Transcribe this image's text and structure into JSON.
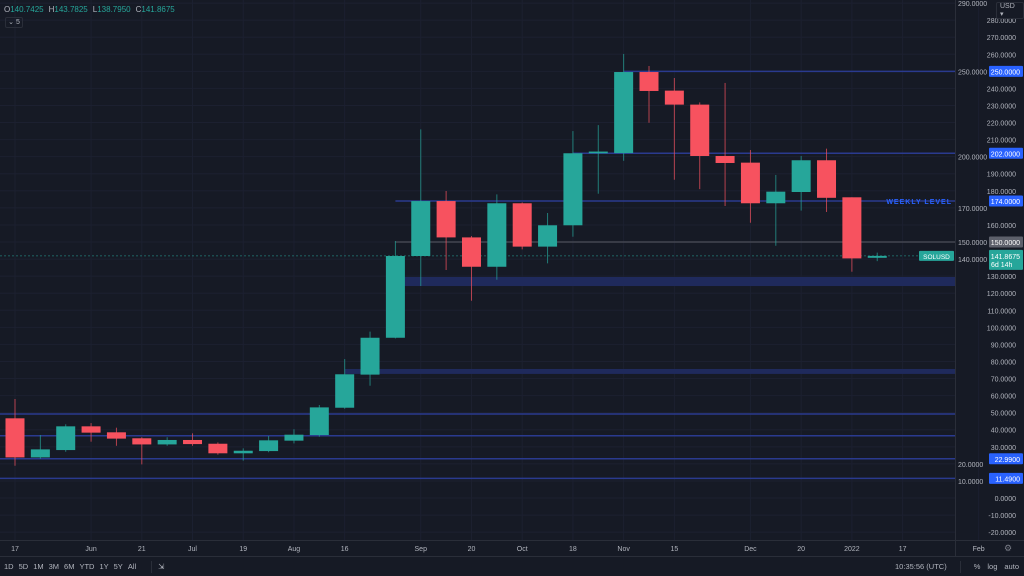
{
  "legend": {
    "o_label": "O",
    "o": "140.7425",
    "h_label": "H",
    "h": "143.7825",
    "l_label": "L",
    "l": "138.7950",
    "c_label": "C",
    "c": "141.8675"
  },
  "collapse_label": "⌄ 5",
  "currency_label": "USD ▾",
  "colors": {
    "up": "#26a69a",
    "down": "#f7525f",
    "level_line": "#2a3a8f",
    "level_label": "#2962ff",
    "band": "#1f2a5c",
    "grey_line": "#434651",
    "background": "#161a25"
  },
  "chart_data": {
    "type": "candlestick",
    "symbol": "SOLUSD",
    "interval": "weekly",
    "ylim": [
      -24.6,
      291.8
    ],
    "y_ticks": [
      -20,
      -10,
      0,
      10,
      20,
      30,
      40,
      50,
      60,
      70,
      80,
      90,
      100,
      110,
      120,
      130,
      140,
      150,
      160,
      170,
      180,
      190,
      200,
      210,
      220,
      230,
      240,
      250,
      260,
      270,
      280,
      290
    ],
    "x_ticks": [
      {
        "label": "17",
        "date": "2021-05-17"
      },
      {
        "label": "Jun",
        "date": "2021-06-07"
      },
      {
        "label": "21",
        "date": "2021-06-21"
      },
      {
        "label": "Jul",
        "date": "2021-07-05"
      },
      {
        "label": "19",
        "date": "2021-07-19"
      },
      {
        "label": "Aug",
        "date": "2021-08-02"
      },
      {
        "label": "16",
        "date": "2021-08-16"
      },
      {
        "label": "Sep",
        "date": "2021-09-06"
      },
      {
        "label": "20",
        "date": "2021-09-20"
      },
      {
        "label": "Oct",
        "date": "2021-10-04"
      },
      {
        "label": "18",
        "date": "2021-10-18"
      },
      {
        "label": "Nov",
        "date": "2021-11-01"
      },
      {
        "label": "15",
        "date": "2021-11-15"
      },
      {
        "label": "Dec",
        "date": "2021-12-06"
      },
      {
        "label": "20",
        "date": "2021-12-20"
      },
      {
        "label": "2022",
        "date": "2022-01-03"
      },
      {
        "label": "17",
        "date": "2022-01-17"
      },
      {
        "label": "Feb",
        "date": "2022-02-07"
      }
    ],
    "start_date": "2021-05-17",
    "candles": [
      [
        46.7,
        58.0,
        18.9,
        23.8
      ],
      [
        23.8,
        36.9,
        23.0,
        28.5
      ],
      [
        28.1,
        43.2,
        27.1,
        42.0
      ],
      [
        42.0,
        43.9,
        33.0,
        38.3
      ],
      [
        38.5,
        41.2,
        30.6,
        34.8
      ],
      [
        35.0,
        35.6,
        19.7,
        31.4
      ],
      [
        31.4,
        35.6,
        30.6,
        34.0
      ],
      [
        34.0,
        37.9,
        30.6,
        31.6
      ],
      [
        31.8,
        32.6,
        25.4,
        26.2
      ],
      [
        26.2,
        29.1,
        21.9,
        27.7
      ],
      [
        27.5,
        36.3,
        26.8,
        33.8
      ],
      [
        33.6,
        40.3,
        32.0,
        37.1
      ],
      [
        36.9,
        54.5,
        35.9,
        53.1
      ],
      [
        52.9,
        81.4,
        52.3,
        72.5
      ],
      [
        72.3,
        97.5,
        65.8,
        93.9
      ],
      [
        93.9,
        150.6,
        93.5,
        141.8
      ],
      [
        141.8,
        216.0,
        124.2,
        174.0
      ],
      [
        174.0,
        179.9,
        133.6,
        152.7
      ],
      [
        152.7,
        153.5,
        115.6,
        135.5
      ],
      [
        135.5,
        177.9,
        127.9,
        172.7
      ],
      [
        172.7,
        173.2,
        145.7,
        147.3
      ],
      [
        147.3,
        167.0,
        137.5,
        159.8
      ],
      [
        159.8,
        215.0,
        153.1,
        202.0
      ],
      [
        202.0,
        218.5,
        178.3,
        203.0
      ],
      [
        202.1,
        260.2,
        197.6,
        249.6
      ],
      [
        249.6,
        253.1,
        219.9,
        238.5
      ],
      [
        238.7,
        246.1,
        186.5,
        230.5
      ],
      [
        230.5,
        231.8,
        181.0,
        200.4
      ],
      [
        200.4,
        243.2,
        171.1,
        196.3
      ],
      [
        196.5,
        203.9,
        161.3,
        172.7
      ],
      [
        172.7,
        189.3,
        147.8,
        179.5
      ],
      [
        179.3,
        200.4,
        168.4,
        197.9
      ],
      [
        197.9,
        204.7,
        167.6,
        175.9
      ],
      [
        176.2,
        176.2,
        132.6,
        140.4
      ],
      [
        140.7425,
        143.7825,
        138.795,
        141.8675
      ]
    ],
    "levels": [
      {
        "price": 250,
        "label": "250.0000",
        "from": "2021-11-01",
        "style": "blue"
      },
      {
        "price": 202,
        "label": "202.0000",
        "from": "2021-10-18",
        "style": "blue"
      },
      {
        "price": 174,
        "label": "174.0000",
        "from": "2021-08-30",
        "style": "blue",
        "text": "WEEKLY LEVEL"
      },
      {
        "price": 150,
        "label": "150.0000",
        "from": "2021-08-30",
        "style": "grey"
      },
      {
        "price": 49.2,
        "from": "2021-05-10",
        "style": "blue"
      },
      {
        "price": 36.5,
        "from": "2021-05-10",
        "style": "blue"
      },
      {
        "price": 22.99,
        "label": "22.9900",
        "from": "2021-05-10",
        "style": "blue"
      },
      {
        "price": 11.49,
        "label": "11.4900",
        "from": "2021-05-10",
        "style": "blue"
      }
    ],
    "bands": [
      {
        "low": 124.2,
        "high": 129.5,
        "from": "2021-08-30"
      },
      {
        "low": 72.7,
        "high": 75.6,
        "from": "2021-08-16"
      }
    ],
    "last_price": {
      "value": "141.8675",
      "countdown": "6d 14h",
      "symbol_label": "SOLUSD"
    }
  },
  "bottom": {
    "ranges": [
      "1D",
      "5D",
      "1M",
      "3M",
      "6M",
      "YTD",
      "1Y",
      "5Y",
      "All"
    ],
    "goto_icon": "calendar-goto-icon",
    "time": "10:35:56 (UTC)",
    "percent": "%",
    "log": "log",
    "auto": "auto"
  }
}
